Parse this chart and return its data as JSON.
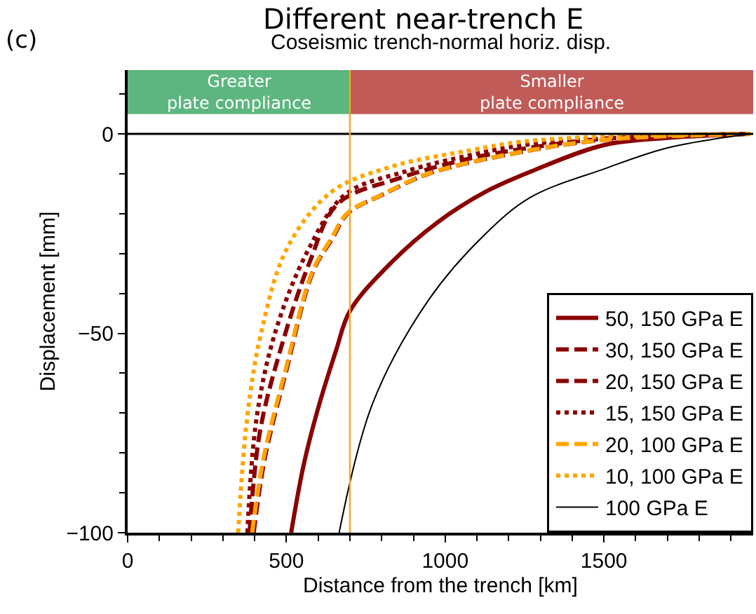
{
  "chart_data": {
    "type": "line",
    "title": "Different near-trench E",
    "subtitle": "Coseismic trench-normal horiz. disp.",
    "xlabel": "Distance from the trench [km]",
    "ylabel": "Displacement [mm]",
    "annotations": [
      "(c)"
    ],
    "xlim": [
      0,
      1970
    ],
    "xticks": [
      0,
      500,
      1000,
      1500
    ],
    "ylim": [
      -100,
      16
    ],
    "yticks": [
      0,
      {
        "value": -50,
        "label": "−50"
      },
      {
        "value": -100,
        "label": "−100"
      }
    ],
    "grid": false,
    "legend": "bottom right",
    "ref_lines": [
      {
        "axis": "y",
        "value": 0,
        "color": "#000000",
        "line_style": "solid"
      },
      {
        "axis": "x",
        "value": 700,
        "color": "#f5a623",
        "line_style": "solid"
      }
    ],
    "bands": [
      {
        "axis": "x",
        "from": 0,
        "to": 700,
        "label": "Greater\nplate compliance",
        "color": "#5db67f"
      },
      {
        "axis": "x",
        "from": 700,
        "to": 1970,
        "label": "Smaller\nplate compliance",
        "color": "#c05b58"
      }
    ],
    "series": [
      {
        "name": "50, 150 GPa E",
        "color": "#8b0000",
        "line_style": "solid",
        "x": [
          515,
          553,
          597,
          656,
          700,
          831,
          977,
          1125,
          1271,
          1500,
          1700,
          1960
        ],
        "values": [
          -100,
          -83.5,
          -69.6,
          -54.4,
          -44.4,
          -32.2,
          -22.1,
          -14.6,
          -9.4,
          -2.8,
          -1,
          0
        ]
      },
      {
        "name": "30, 150 GPa E",
        "color": "#8b0000",
        "line_style": "dashed",
        "x": [
          397,
          432,
          497,
          584,
          644,
          694,
          804,
          951,
          1229,
          1500,
          1950
        ],
        "values": [
          -100,
          -81.3,
          -60.2,
          -34.5,
          -26.3,
          -19.9,
          -15.2,
          -9.9,
          -4.7,
          -1.5,
          0
        ]
      },
      {
        "name": "20, 150 GPa E",
        "color": "#8b0000",
        "line_style": "dashed",
        "x": [
          384,
          416,
          478,
          574,
          662,
          860,
          1060,
          1240,
          1500,
          1955
        ],
        "values": [
          -100,
          -75,
          -55,
          -32,
          -17.5,
          -11,
          -6.5,
          -3.8,
          -1.2,
          0
        ]
      },
      {
        "name": "15, 150 GPa E",
        "color": "#8b0000",
        "line_style": "dotted",
        "x": [
          377,
          406,
          465,
          568,
          685,
          875,
          1081,
          1242,
          1500,
          1945
        ],
        "values": [
          -100,
          -71.3,
          -49.7,
          -29.2,
          -15.2,
          -9.4,
          -5.3,
          -2.9,
          -1,
          0
        ]
      },
      {
        "name": "20, 100 GPa E",
        "color": "#ffa500",
        "line_style": "dashed",
        "x": [
          392,
          428,
          494,
          582,
          641,
          692,
          802,
          949,
          1227,
          1500,
          1960
        ],
        "values": [
          -100,
          -81.3,
          -60.2,
          -34.5,
          -26.3,
          -19.9,
          -15.2,
          -9.9,
          -4.7,
          -1.5,
          0
        ]
      },
      {
        "name": "10, 100 GPa E",
        "color": "#ffa500",
        "line_style": "dotted",
        "x": [
          348,
          377,
          421,
          502,
          641,
          831,
          1081,
          1237,
          1500,
          1940
        ],
        "values": [
          -100,
          -70.8,
          -49.7,
          -28.7,
          -14.6,
          -8.2,
          -4.1,
          -2,
          -0.7,
          0
        ]
      },
      {
        "name": "100 GPa E",
        "color": "#000000",
        "line_style": "solid",
        "x": [
          666,
          773,
          949,
          1125,
          1271,
          1500,
          1700,
          1960
        ],
        "values": [
          -100,
          -67.3,
          -41.5,
          -25.2,
          -15.8,
          -8.8,
          -3.5,
          0
        ]
      }
    ]
  }
}
